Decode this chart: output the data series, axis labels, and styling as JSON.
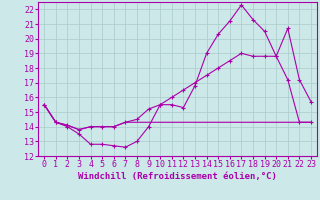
{
  "background_color": "#cce8e8",
  "grid_color": "#aacccc",
  "line_color": "#aa00aa",
  "xlabel": "Windchill (Refroidissement éolien,°C)",
  "xlabel_fontsize": 6.5,
  "tick_fontsize": 6,
  "xlim": [
    -0.5,
    23.5
  ],
  "ylim": [
    12,
    22.5
  ],
  "yticks": [
    12,
    13,
    14,
    15,
    16,
    17,
    18,
    19,
    20,
    21,
    22
  ],
  "xticks": [
    0,
    1,
    2,
    3,
    4,
    5,
    6,
    7,
    8,
    9,
    10,
    11,
    12,
    13,
    14,
    15,
    16,
    17,
    18,
    19,
    20,
    21,
    22,
    23
  ],
  "line1_x": [
    0,
    1,
    2,
    3,
    4,
    5,
    6,
    7,
    8,
    9,
    10,
    11,
    12,
    13,
    14,
    15,
    16,
    17,
    18,
    19,
    20,
    21,
    22,
    23
  ],
  "line1_y": [
    15.5,
    14.3,
    14.0,
    13.5,
    12.8,
    12.8,
    12.7,
    12.6,
    13.0,
    14.0,
    15.5,
    15.5,
    15.3,
    16.8,
    19.0,
    20.3,
    21.2,
    22.3,
    21.3,
    20.5,
    18.8,
    20.7,
    17.2,
    15.7
  ],
  "line2_x": [
    0,
    1,
    2,
    3,
    4,
    5,
    6,
    7,
    8,
    9,
    10,
    11,
    12,
    13,
    14,
    15,
    16,
    17,
    18,
    19,
    20,
    21,
    22,
    23
  ],
  "line2_y": [
    15.5,
    14.3,
    14.1,
    13.8,
    14.0,
    14.0,
    14.0,
    14.3,
    14.5,
    15.2,
    15.5,
    16.0,
    16.5,
    17.0,
    17.5,
    18.0,
    18.5,
    19.0,
    18.8,
    18.8,
    18.8,
    17.2,
    14.3,
    14.3
  ],
  "line3_x": [
    0,
    1,
    2,
    3,
    4,
    5,
    6,
    7,
    8,
    9,
    10,
    11,
    12,
    13,
    14,
    15,
    16,
    17,
    18,
    19,
    20,
    21,
    22,
    23
  ],
  "line3_y": [
    15.5,
    14.3,
    14.1,
    13.8,
    14.0,
    14.0,
    14.0,
    14.3,
    14.3,
    14.3,
    14.3,
    14.3,
    14.3,
    14.3,
    14.3,
    14.3,
    14.3,
    14.3,
    14.3,
    14.3,
    14.3,
    14.3,
    14.3,
    14.3
  ]
}
